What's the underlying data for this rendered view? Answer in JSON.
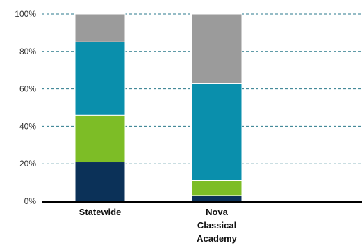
{
  "chart_data": {
    "type": "bar",
    "stacked": true,
    "categories": [
      "Statewide",
      "Nova Classical Academy"
    ],
    "category_label_lines": [
      [
        "Statewide"
      ],
      [
        "Nova",
        "Classical",
        "Academy"
      ]
    ],
    "series": [
      {
        "color": "#0b3158",
        "values": [
          21,
          3
        ]
      },
      {
        "color": "#7dbd26",
        "values": [
          25,
          8
        ]
      },
      {
        "color": "#0a8fac",
        "values": [
          39,
          52
        ]
      },
      {
        "color": "#9b9b9b",
        "values": [
          15,
          37
        ]
      }
    ],
    "ylim": [
      0,
      100
    ],
    "yticks": [
      0,
      20,
      40,
      60,
      80,
      100
    ],
    "ytick_labels": [
      "0%",
      "20%",
      "40%",
      "60%",
      "80%",
      "100%"
    ],
    "grid": true,
    "grid_style": "dashed",
    "grid_color": "#2b7a8c",
    "axis_color": "#000000",
    "title": "",
    "xlabel": "",
    "ylabel": ""
  }
}
